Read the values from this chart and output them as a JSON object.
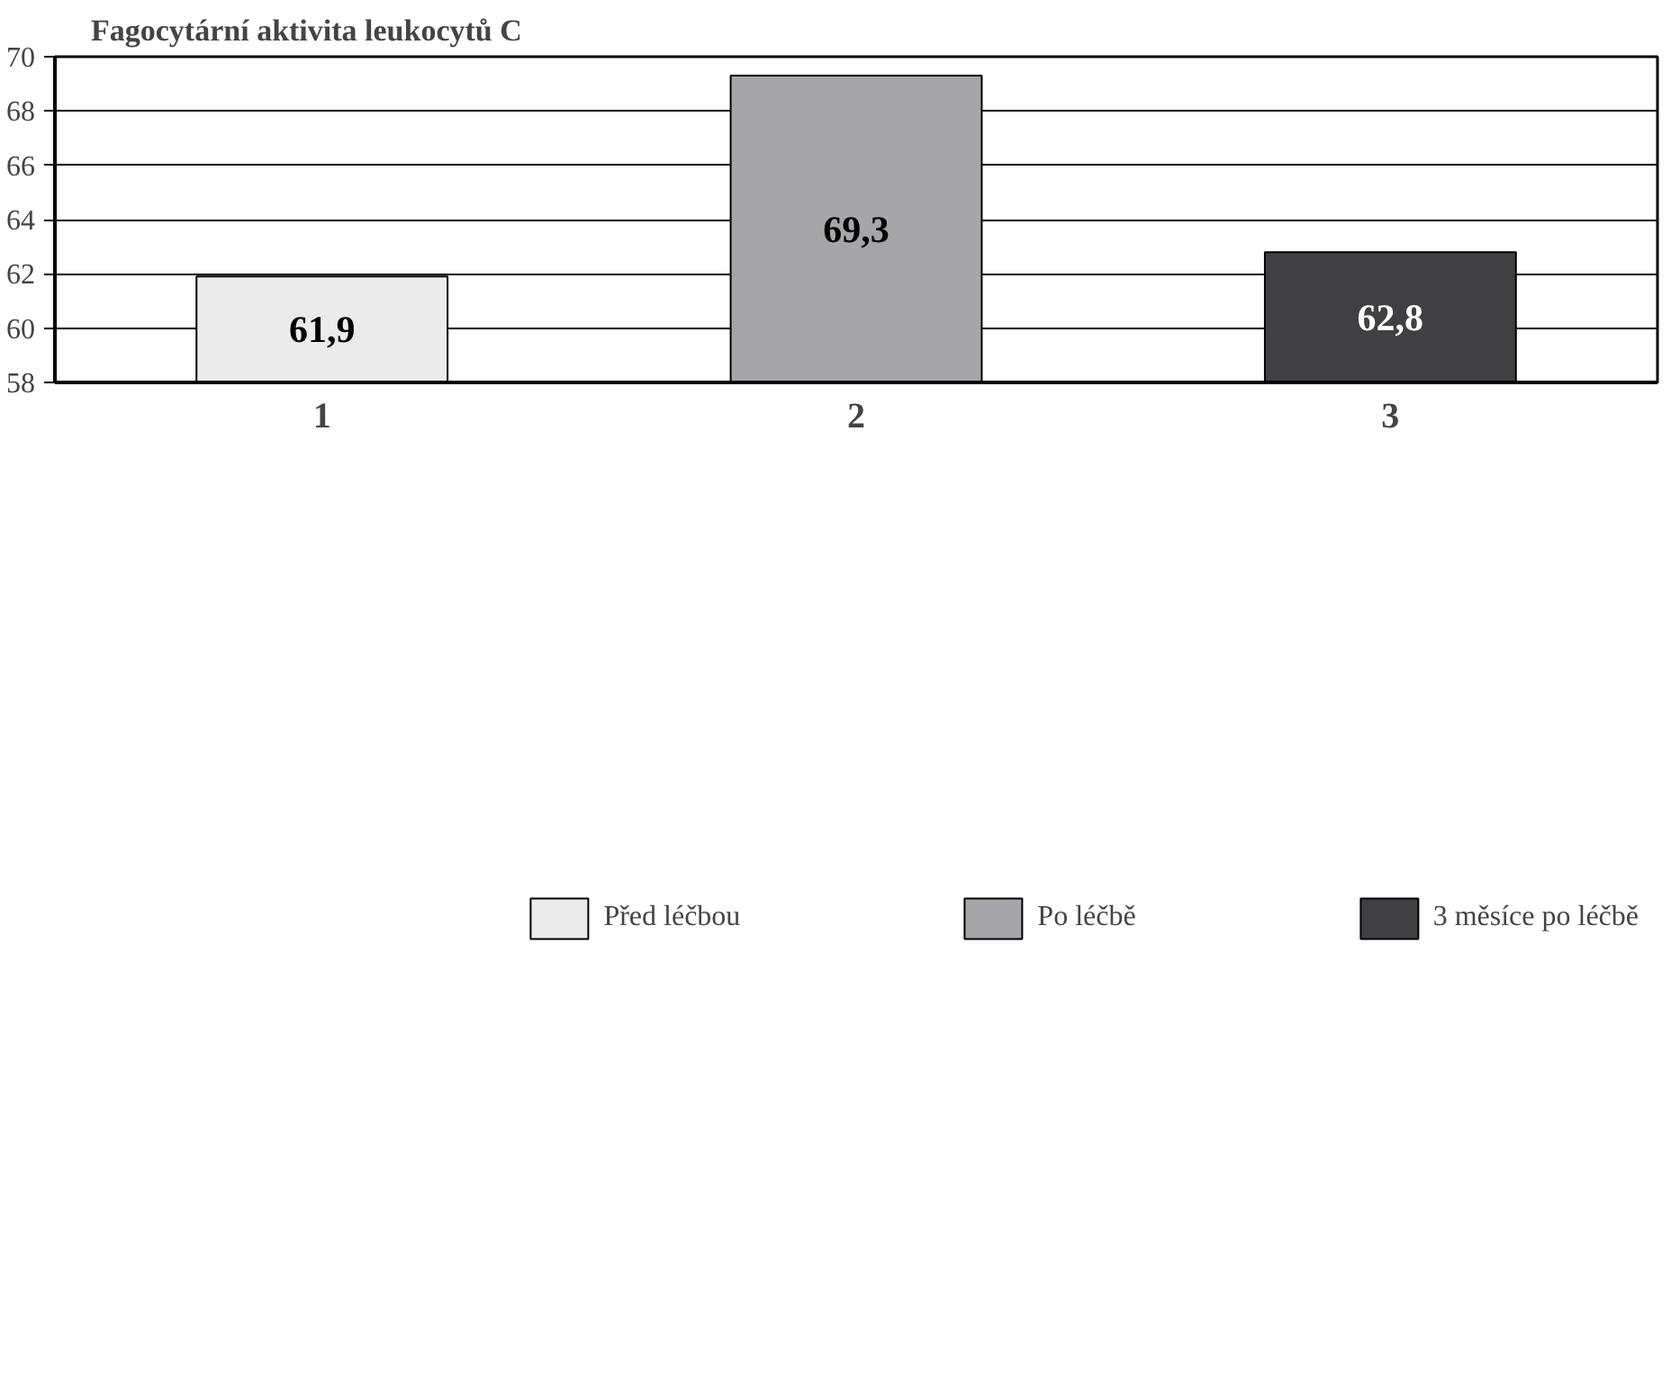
{
  "chart_data": {
    "type": "bar",
    "title": "Fagocytární aktivita leukocytů C",
    "categories": [
      "1",
      "2",
      "3"
    ],
    "series": [
      {
        "name": "Před léčbou",
        "color": "#ebebeb",
        "values": [
          61.9,
          null,
          null
        ],
        "value_labels": [
          "61,9",
          null,
          null
        ]
      },
      {
        "name": "Po léčbě",
        "color": "#a6a6a8",
        "values": [
          null,
          69.3,
          null
        ],
        "value_labels": [
          null,
          "69,3",
          null
        ]
      },
      {
        "name": "3 měsíce po léčbě",
        "color": "#404042",
        "values": [
          null,
          null,
          62.8
        ],
        "value_labels": [
          null,
          null,
          "62,8"
        ]
      }
    ],
    "ylim": [
      58,
      70
    ],
    "yticks": [
      58,
      60,
      62,
      64,
      66,
      68,
      70
    ],
    "grid": "y",
    "legend": "bottom"
  }
}
